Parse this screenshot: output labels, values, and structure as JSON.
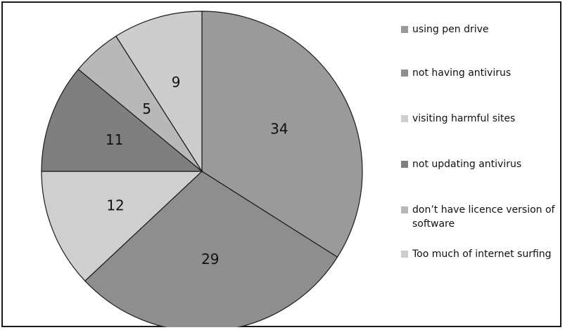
{
  "chart_data": {
    "type": "pie",
    "title": "",
    "slices": [
      {
        "label": "using pen drive",
        "value": 34,
        "value_label": "34",
        "color": "#9a9a9a"
      },
      {
        "label": "not having antivirus",
        "value": 29,
        "value_label": "29",
        "color": "#8e8e8e"
      },
      {
        "label": "visiting harmful sites",
        "value": 12,
        "value_label": "12",
        "color": "#cfcfcf"
      },
      {
        "label": "not updating antivirus",
        "value": 11,
        "value_label": "11",
        "color": "#7f7f7f"
      },
      {
        "label": "don’t have licence version of software",
        "value": 5,
        "value_label": "5",
        "color": "#b8b8b8"
      },
      {
        "label": "Too much of internet surfing",
        "value": 9,
        "value_label": "9",
        "color": "#cdcdcd"
      }
    ],
    "legend_position": "right"
  }
}
